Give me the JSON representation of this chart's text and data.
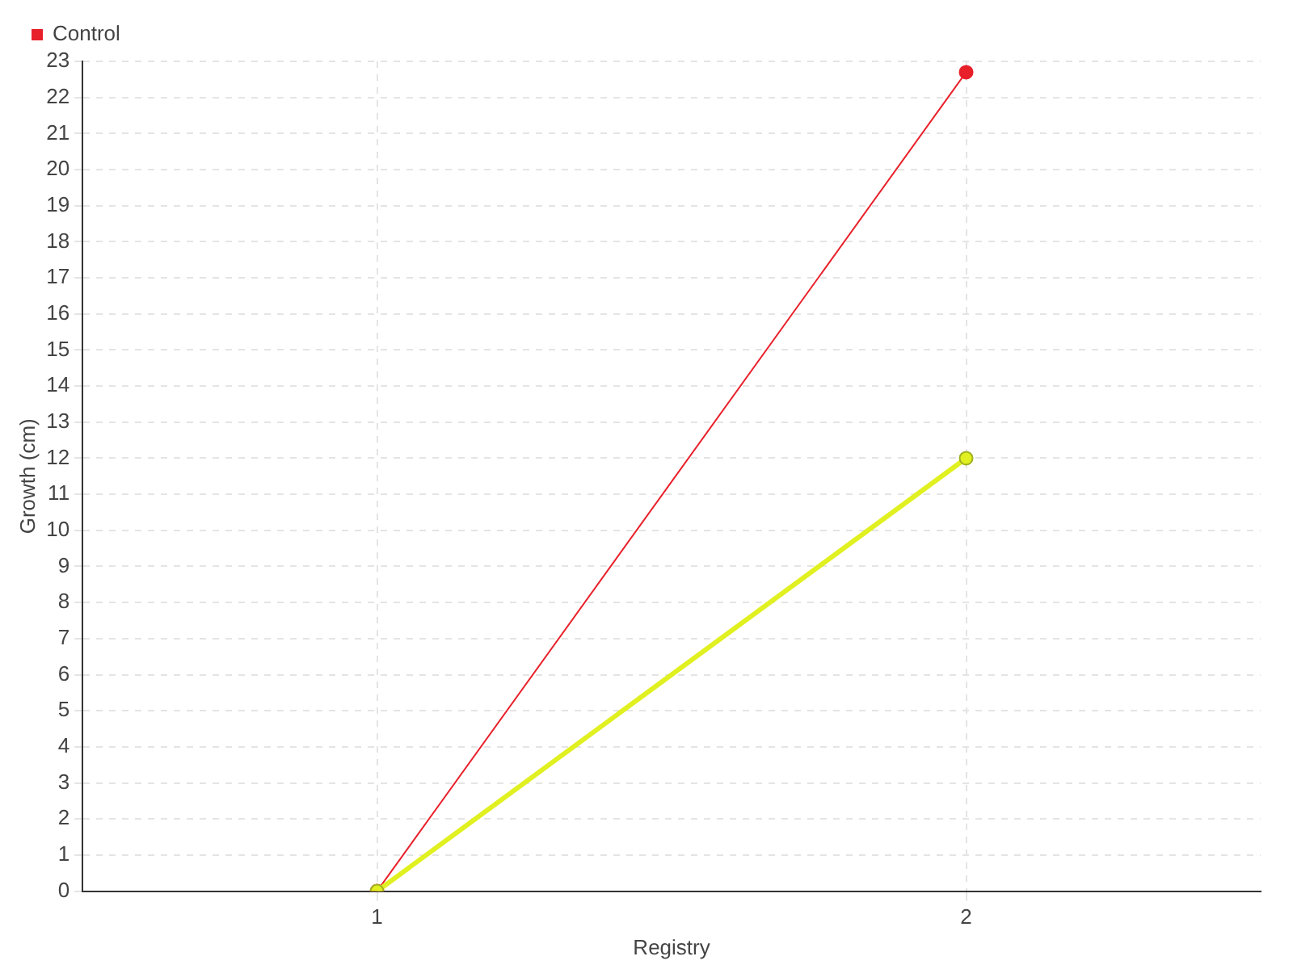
{
  "chart_data": {
    "type": "line",
    "xlabel": "Registry",
    "ylabel": "Growth (cm)",
    "x": [
      1,
      2
    ],
    "xlim": [
      0.5,
      2.5
    ],
    "xticks": [
      1,
      2
    ],
    "ylim": [
      0,
      23
    ],
    "yticks": [
      0,
      1,
      2,
      3,
      4,
      5,
      6,
      7,
      8,
      9,
      10,
      11,
      12,
      13,
      14,
      15,
      16,
      17,
      18,
      19,
      20,
      21,
      22,
      23
    ],
    "series": [
      {
        "color": "#e0f020",
        "values": [
          0,
          12
        ]
      },
      {
        "name": "Control",
        "color": "#e8202a",
        "values": [
          0,
          22.7
        ]
      }
    ],
    "grid": true,
    "legend": "top left",
    "marker": "circle",
    "line_style": "solid"
  }
}
